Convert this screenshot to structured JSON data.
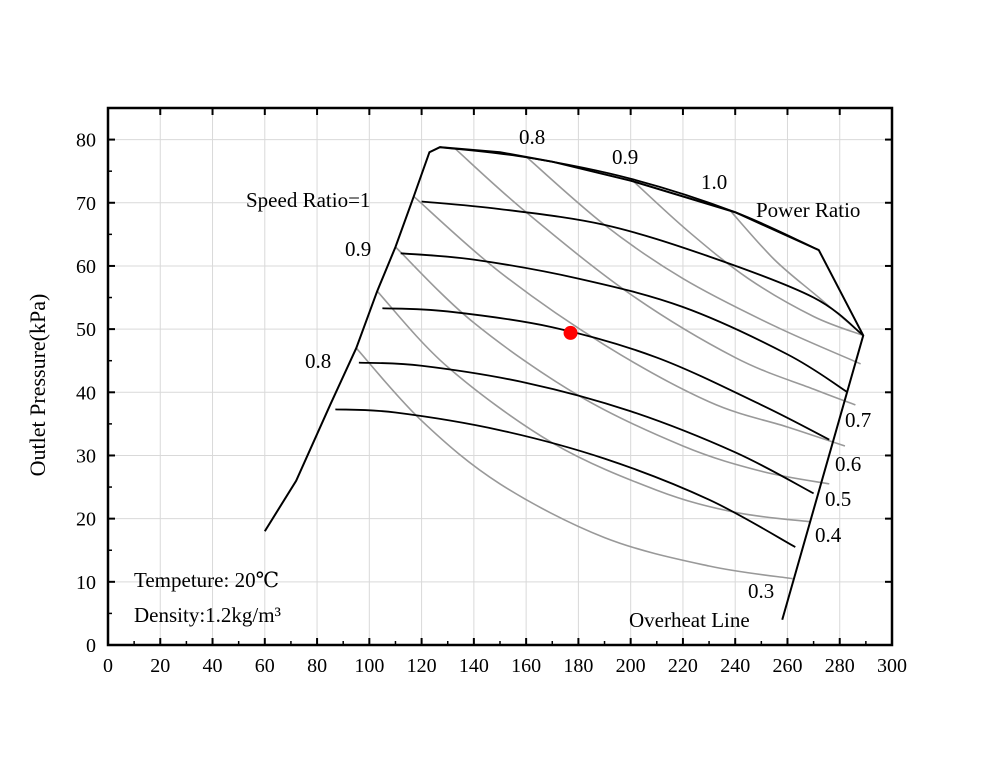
{
  "chart_data": {
    "type": "line",
    "title": "",
    "xlabel": "",
    "ylabel": "Outlet Pressure(kPa)",
    "xlim": [
      0,
      300
    ],
    "ylim": [
      0,
      85
    ],
    "xticks": [
      0,
      20,
      40,
      60,
      80,
      100,
      120,
      140,
      160,
      180,
      200,
      220,
      240,
      260,
      280,
      300
    ],
    "yticks": [
      0,
      10,
      20,
      30,
      40,
      50,
      60,
      70,
      80
    ],
    "grid": true,
    "colors": {
      "speed_curve": "#000000",
      "power_curve": "#999999",
      "operating_point": "#ff0000",
      "grid": "#d9d9d9"
    },
    "annotations": {
      "speed_ratio_label": "Speed Ratio=1",
      "speed_0_9": "0.9",
      "speed_0_8": "0.8",
      "power_ratio_label": "Power Ratio",
      "power_0_8": "0.8",
      "power_0_9": "0.9",
      "power_1_0": "1.0",
      "power_0_7": "0.7",
      "power_0_6": "0.6",
      "power_0_5": "0.5",
      "power_0_4": "0.4",
      "power_0_3": "0.3",
      "overheat_label": "Overheat Line",
      "temperature": "Tempeture: 20℃",
      "density": "Density:1.2kg/m³"
    },
    "boundary": [
      [
        60,
        18
      ],
      [
        72,
        26
      ],
      [
        85,
        38
      ],
      [
        95,
        47
      ],
      [
        103,
        56
      ],
      [
        110,
        63
      ],
      [
        117,
        71
      ],
      [
        123,
        78
      ],
      [
        127,
        78.8
      ],
      [
        150,
        78
      ],
      [
        170,
        76.5
      ],
      [
        200,
        73.5
      ],
      [
        240,
        68.5
      ],
      [
        272,
        62.5
      ],
      [
        289,
        49
      ],
      [
        258,
        4
      ]
    ],
    "speed_curves": [
      {
        "name": "Speed Ratio=1",
        "points": [
          [
            127,
            78.8
          ],
          [
            160,
            77.2
          ],
          [
            200,
            73.8
          ],
          [
            240,
            68.5
          ],
          [
            272,
            62.5
          ]
        ]
      },
      {
        "name": "",
        "points": [
          [
            120,
            70.2
          ],
          [
            150,
            69.0
          ],
          [
            190,
            66.5
          ],
          [
            230,
            61.5
          ],
          [
            270,
            55.0
          ],
          [
            289,
            49.0
          ]
        ]
      },
      {
        "name": "0.9",
        "points": [
          [
            112,
            62.0
          ],
          [
            140,
            61.0
          ],
          [
            180,
            58.0
          ],
          [
            220,
            53.5
          ],
          [
            260,
            46.0
          ],
          [
            283,
            40.0
          ]
        ]
      },
      {
        "name": "",
        "points": [
          [
            105,
            53.3
          ],
          [
            130,
            52.8
          ],
          [
            170,
            50.3
          ],
          [
            210,
            45.5
          ],
          [
            250,
            38.0
          ],
          [
            276,
            32.5
          ]
        ]
      },
      {
        "name": "",
        "points": [
          [
            96,
            44.7
          ],
          [
            120,
            44.2
          ],
          [
            160,
            41.5
          ],
          [
            200,
            37.0
          ],
          [
            240,
            30.5
          ],
          [
            270,
            24.0
          ]
        ]
      },
      {
        "name": "0.8",
        "points": [
          [
            87,
            37.3
          ],
          [
            110,
            36.8
          ],
          [
            150,
            34.0
          ],
          [
            190,
            29.5
          ],
          [
            230,
            23.0
          ],
          [
            263,
            15.5
          ]
        ]
      }
    ],
    "power_curves": [
      {
        "name": "0.3",
        "points": [
          [
            95,
            47.0
          ],
          [
            120,
            35.5
          ],
          [
            150,
            25.5
          ],
          [
            190,
            17.0
          ],
          [
            230,
            12.5
          ],
          [
            262,
            10.5
          ]
        ]
      },
      {
        "name": "0.4",
        "points": [
          [
            103,
            56.0
          ],
          [
            130,
            44.0
          ],
          [
            170,
            32.0
          ],
          [
            210,
            24.5
          ],
          [
            240,
            21.0
          ],
          [
            269,
            19.5
          ]
        ]
      },
      {
        "name": "0.5",
        "points": [
          [
            110,
            63.0
          ],
          [
            140,
            51.0
          ],
          [
            180,
            39.5
          ],
          [
            220,
            31.5
          ],
          [
            250,
            27.5
          ],
          [
            276,
            25.5
          ]
        ]
      },
      {
        "name": "0.6",
        "points": [
          [
            117,
            71.0
          ],
          [
            150,
            59.0
          ],
          [
            190,
            47.5
          ],
          [
            230,
            38.5
          ],
          [
            260,
            34.5
          ],
          [
            282,
            31.5
          ]
        ]
      },
      {
        "name": "0.7",
        "points": [
          [
            133,
            78.5
          ],
          [
            160,
            68.5
          ],
          [
            200,
            55.5
          ],
          [
            240,
            45.5
          ],
          [
            270,
            40.5
          ],
          [
            286,
            38.0
          ]
        ]
      },
      {
        "name": "0.8",
        "points": [
          [
            160,
            77.3
          ],
          [
            190,
            66.5
          ],
          [
            220,
            58.0
          ],
          [
            255,
            50.5
          ],
          [
            288,
            44.5
          ]
        ]
      },
      {
        "name": "0.9",
        "points": [
          [
            200,
            73.8
          ],
          [
            222,
            65.5
          ],
          [
            245,
            58.0
          ],
          [
            270,
            52.0
          ],
          [
            289,
            49.0
          ]
        ]
      },
      {
        "name": "1.0",
        "points": [
          [
            238,
            68.8
          ],
          [
            255,
            61.0
          ],
          [
            272,
            55.0
          ],
          [
            289,
            49.0
          ]
        ]
      }
    ],
    "operating_point": {
      "x": 177,
      "y": 49.4
    }
  }
}
